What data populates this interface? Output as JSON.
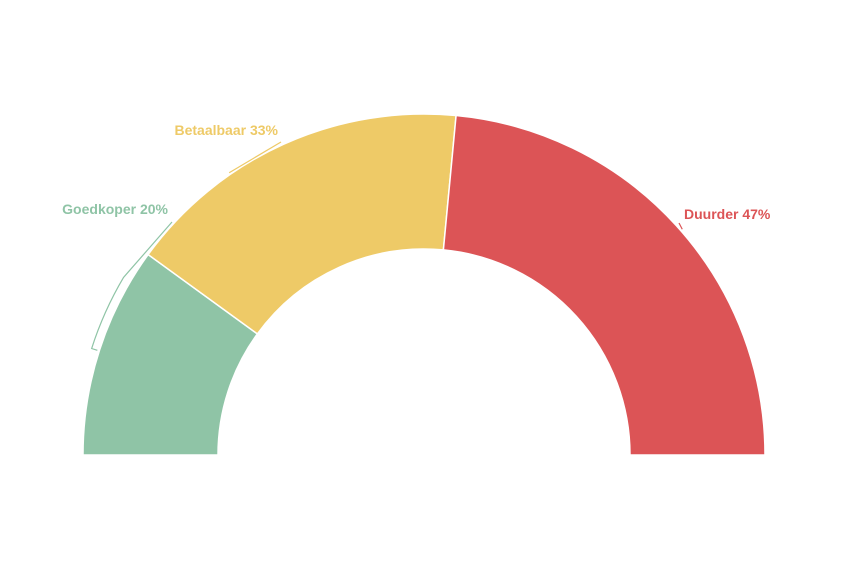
{
  "chart_data": {
    "type": "pie",
    "variant": "semi-donut",
    "title": "",
    "legend": "none",
    "slices": [
      {
        "label": "Goedkoper",
        "value": 20,
        "display": "Goedkoper 20%",
        "color": "#8fc4a6"
      },
      {
        "label": "Betaalbaar",
        "value": 33,
        "display": "Betaalbaar 33%",
        "color": "#eeca67"
      },
      {
        "label": "Duurder",
        "value": 47,
        "display": "Duurder 47%",
        "color": "#dc5456"
      }
    ]
  }
}
